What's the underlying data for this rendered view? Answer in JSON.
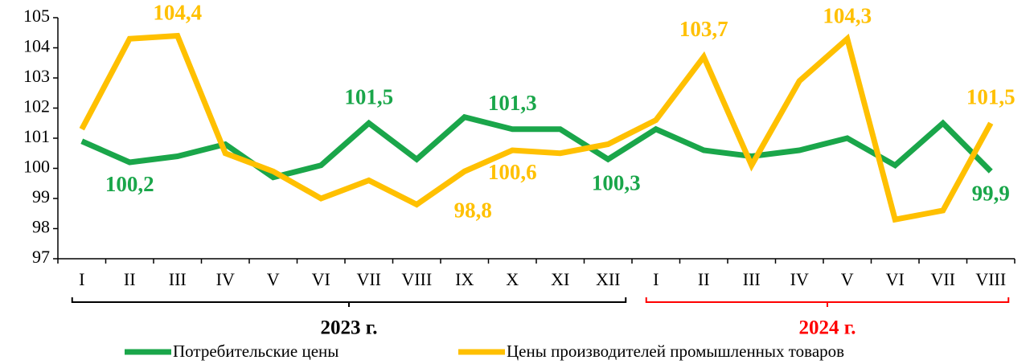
{
  "chart_data": {
    "type": "line",
    "categories": [
      "I",
      "II",
      "III",
      "IV",
      "V",
      "VI",
      "VII",
      "VIII",
      "IX",
      "X",
      "XI",
      "XII",
      "I",
      "II",
      "III",
      "IV",
      "V",
      "VI",
      "VII",
      "VIII"
    ],
    "groups": [
      {
        "label": "2023 г.",
        "color": "#000000"
      },
      {
        "label": "2024 г.",
        "color": "#ff0000"
      }
    ],
    "series": [
      {
        "name": "Потребительские цены",
        "color": "#1aa64a",
        "values": [
          100.9,
          100.2,
          100.4,
          100.8,
          99.7,
          100.1,
          101.5,
          100.3,
          101.7,
          101.3,
          101.3,
          100.3,
          101.3,
          100.6,
          100.4,
          100.6,
          101.0,
          100.1,
          101.5,
          99.9
        ],
        "value_labels": [
          null,
          "100,2",
          null,
          null,
          null,
          null,
          "101,5",
          null,
          null,
          "101,3",
          null,
          "100,3",
          null,
          null,
          null,
          null,
          null,
          null,
          null,
          "99,9"
        ]
      },
      {
        "name": "Цены производителей промышленных товаров",
        "color": "#ffc000",
        "values": [
          101.3,
          104.3,
          104.4,
          100.5,
          99.9,
          99.0,
          99.6,
          98.8,
          99.9,
          100.6,
          100.5,
          100.8,
          101.6,
          103.7,
          100.1,
          102.9,
          104.3,
          98.3,
          98.6,
          101.5
        ],
        "value_labels": [
          null,
          null,
          "104,4",
          null,
          null,
          null,
          null,
          "98,8",
          null,
          "100,6",
          null,
          null,
          null,
          "103,7",
          null,
          null,
          "104,3",
          null,
          null,
          "101,5"
        ]
      }
    ],
    "ylim": [
      97,
      105
    ],
    "yticks": [
      97,
      98,
      99,
      100,
      101,
      102,
      103,
      104,
      105
    ],
    "grid": false
  }
}
